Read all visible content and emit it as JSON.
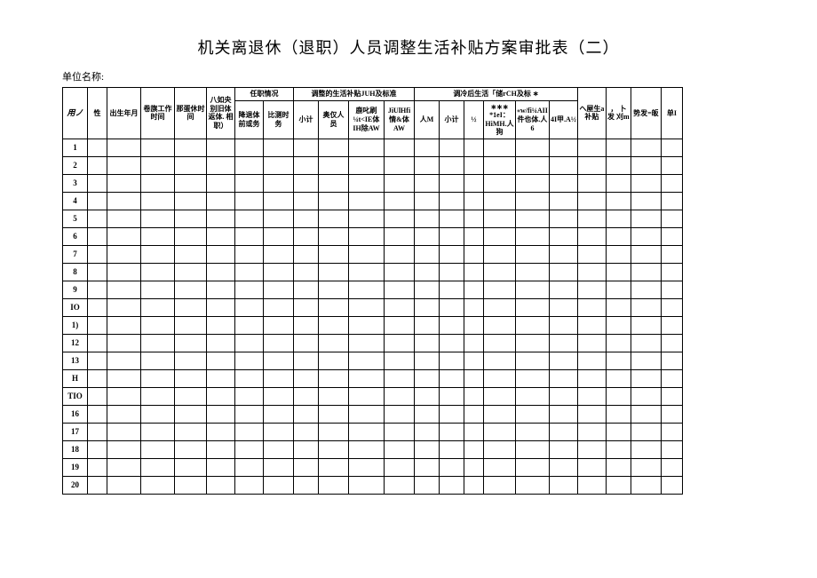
{
  "title": "机关离退休（退职）人员调整生活补贴方案审批表（二）",
  "unit_label": "单位名称:",
  "header": {
    "row_num": "用ノ",
    "gender": "性",
    "birth_ym": "出生年月",
    "join_work": "卷旗工作时间",
    "retire_time": "那蛋休时间",
    "category": "八如央别旧体返体. 相职）",
    "position_group": "任职情况",
    "pos_before": "降退体前或务",
    "pos_timing": "比测时务",
    "adjust_group": "调整的生活补贴JUH及标准",
    "adj_sub": "小计",
    "adj_type1": "奥仅人员",
    "adj_type2": "鹿叱刷¼t<IE体 IH除AW",
    "adj_type3": "JiUlHfi情&体AW",
    "after_group": "调冷后生活「储rCH及标 ∗",
    "aft_sub0": "人M",
    "aft_sub": "小计",
    "aft_half": "½",
    "aft_type1": "∗∗∗ *1eI：HiMH.人狗",
    "aft_type2": "«w/fi¼AII件也体.人6",
    "aft_type3": "4I甲.A½",
    "life_supp": "ヘ屋生a补贴",
    "reissue": "， 卜发 刈m",
    "trend": "势发=皈",
    "unit": "单I"
  },
  "row_numbers": [
    "1",
    "2",
    "3",
    "4",
    "5",
    "6",
    "7",
    "8",
    "9",
    "IO",
    "1)",
    "12",
    "13",
    "H",
    "TIO",
    "16",
    "17",
    "18",
    "19",
    "20"
  ],
  "col_widths": {
    "num": 28,
    "gender": 22,
    "birth": 38,
    "join": 38,
    "retire": 36,
    "category": 32,
    "pos1": 32,
    "pos2": 34,
    "adj_s": 28,
    "adj1": 34,
    "adj2": 40,
    "adj3": 34,
    "aft_m": 28,
    "aft_s": 28,
    "aft_h": 22,
    "aft1": 36,
    "aft2": 36,
    "aft3": 32,
    "life": 32,
    "reissue": 28,
    "trend": 34,
    "unit": 24
  }
}
